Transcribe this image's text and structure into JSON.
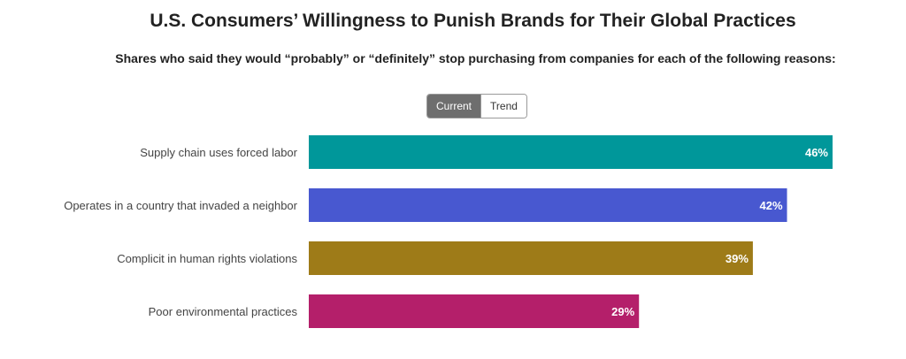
{
  "title": "U.S. Consumers’ Willingness to Punish Brands for Their Global Practices",
  "subtitle": "Shares who said they would “probably” or “definitely” stop purchasing from companies for each of the following reasons:",
  "toggle": {
    "current_label": "Current",
    "trend_label": "Trend",
    "selected": "Current"
  },
  "chart_data": {
    "type": "bar",
    "orientation": "horizontal",
    "categories": [
      "Supply chain uses forced labor",
      "Operates in a country that invaded a neighbor",
      "Complicit in human rights violations",
      "Poor environmental practices"
    ],
    "values": [
      46,
      42,
      39,
      29
    ],
    "value_labels": [
      "46%",
      "42%",
      "39%",
      "29%"
    ],
    "colors": [
      "#00979a",
      "#4858d0",
      "#9e7b18",
      "#b41f6a"
    ],
    "xlim": [
      0,
      46
    ],
    "unit": "%",
    "grid": false,
    "legend": "none"
  }
}
